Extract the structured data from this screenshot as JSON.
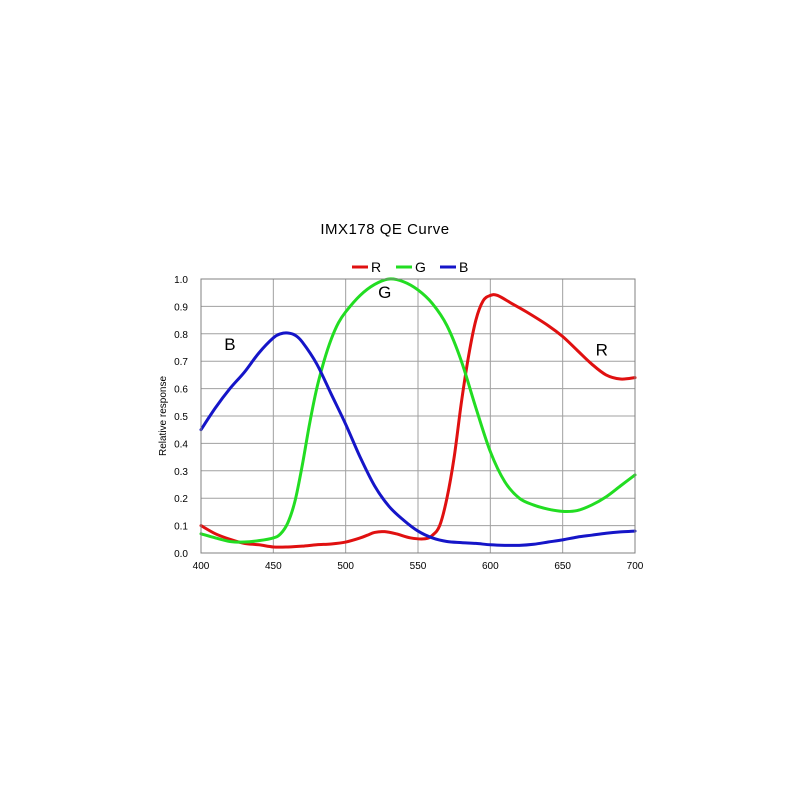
{
  "chart_data": {
    "type": "line",
    "title": "IMX178 QE Curve",
    "xlabel": "",
    "ylabel": "Relative response",
    "xlim": [
      400,
      700
    ],
    "ylim": [
      0.0,
      1.0
    ],
    "x_ticks": [
      "400",
      "450",
      "500",
      "550",
      "600",
      "650",
      "700"
    ],
    "y_ticks": [
      "0.0",
      "0.1",
      "0.2",
      "0.3",
      "0.4",
      "0.5",
      "0.6",
      "0.7",
      "0.8",
      "0.9",
      "1.0"
    ],
    "grid": true,
    "legend_position": "top-center",
    "series": [
      {
        "name": "R",
        "color": "#e01010",
        "points": [
          [
            400,
            0.1
          ],
          [
            410,
            0.07
          ],
          [
            420,
            0.05
          ],
          [
            430,
            0.035
          ],
          [
            440,
            0.03
          ],
          [
            450,
            0.022
          ],
          [
            460,
            0.022
          ],
          [
            470,
            0.025
          ],
          [
            480,
            0.03
          ],
          [
            490,
            0.033
          ],
          [
            500,
            0.04
          ],
          [
            510,
            0.055
          ],
          [
            515,
            0.065
          ],
          [
            520,
            0.075
          ],
          [
            527,
            0.078
          ],
          [
            535,
            0.07
          ],
          [
            545,
            0.055
          ],
          [
            555,
            0.052
          ],
          [
            560,
            0.065
          ],
          [
            565,
            0.1
          ],
          [
            570,
            0.2
          ],
          [
            575,
            0.35
          ],
          [
            580,
            0.55
          ],
          [
            585,
            0.72
          ],
          [
            590,
            0.85
          ],
          [
            595,
            0.92
          ],
          [
            600,
            0.94
          ],
          [
            605,
            0.94
          ],
          [
            615,
            0.91
          ],
          [
            625,
            0.88
          ],
          [
            640,
            0.83
          ],
          [
            650,
            0.79
          ],
          [
            660,
            0.74
          ],
          [
            670,
            0.69
          ],
          [
            680,
            0.65
          ],
          [
            690,
            0.635
          ],
          [
            700,
            0.64
          ]
        ]
      },
      {
        "name": "G",
        "color": "#22dd22",
        "points": [
          [
            400,
            0.07
          ],
          [
            410,
            0.055
          ],
          [
            420,
            0.042
          ],
          [
            430,
            0.04
          ],
          [
            440,
            0.045
          ],
          [
            450,
            0.055
          ],
          [
            455,
            0.07
          ],
          [
            460,
            0.11
          ],
          [
            465,
            0.19
          ],
          [
            470,
            0.32
          ],
          [
            475,
            0.47
          ],
          [
            480,
            0.6
          ],
          [
            485,
            0.7
          ],
          [
            490,
            0.78
          ],
          [
            495,
            0.84
          ],
          [
            500,
            0.88
          ],
          [
            510,
            0.94
          ],
          [
            520,
            0.98
          ],
          [
            530,
            1.0
          ],
          [
            540,
            0.99
          ],
          [
            550,
            0.96
          ],
          [
            560,
            0.91
          ],
          [
            570,
            0.83
          ],
          [
            580,
            0.7
          ],
          [
            590,
            0.53
          ],
          [
            600,
            0.37
          ],
          [
            610,
            0.26
          ],
          [
            620,
            0.2
          ],
          [
            630,
            0.175
          ],
          [
            640,
            0.16
          ],
          [
            650,
            0.152
          ],
          [
            660,
            0.155
          ],
          [
            670,
            0.175
          ],
          [
            680,
            0.205
          ],
          [
            690,
            0.245
          ],
          [
            700,
            0.285
          ]
        ]
      },
      {
        "name": "B",
        "color": "#1515c8",
        "points": [
          [
            400,
            0.45
          ],
          [
            410,
            0.53
          ],
          [
            420,
            0.6
          ],
          [
            430,
            0.66
          ],
          [
            440,
            0.73
          ],
          [
            450,
            0.785
          ],
          [
            455,
            0.8
          ],
          [
            460,
            0.803
          ],
          [
            465,
            0.795
          ],
          [
            470,
            0.77
          ],
          [
            480,
            0.69
          ],
          [
            490,
            0.58
          ],
          [
            500,
            0.47
          ],
          [
            510,
            0.35
          ],
          [
            520,
            0.245
          ],
          [
            530,
            0.17
          ],
          [
            540,
            0.12
          ],
          [
            550,
            0.08
          ],
          [
            560,
            0.055
          ],
          [
            570,
            0.042
          ],
          [
            580,
            0.038
          ],
          [
            590,
            0.035
          ],
          [
            600,
            0.03
          ],
          [
            610,
            0.028
          ],
          [
            620,
            0.028
          ],
          [
            630,
            0.032
          ],
          [
            640,
            0.04
          ],
          [
            650,
            0.048
          ],
          [
            660,
            0.058
          ],
          [
            670,
            0.065
          ],
          [
            680,
            0.072
          ],
          [
            690,
            0.077
          ],
          [
            700,
            0.08
          ]
        ]
      }
    ],
    "annotations": [
      {
        "text": "B",
        "x": 420,
        "y": 0.74
      },
      {
        "text": "G",
        "x": 527,
        "y": 0.93
      },
      {
        "text": "R",
        "x": 677,
        "y": 0.72
      }
    ]
  }
}
